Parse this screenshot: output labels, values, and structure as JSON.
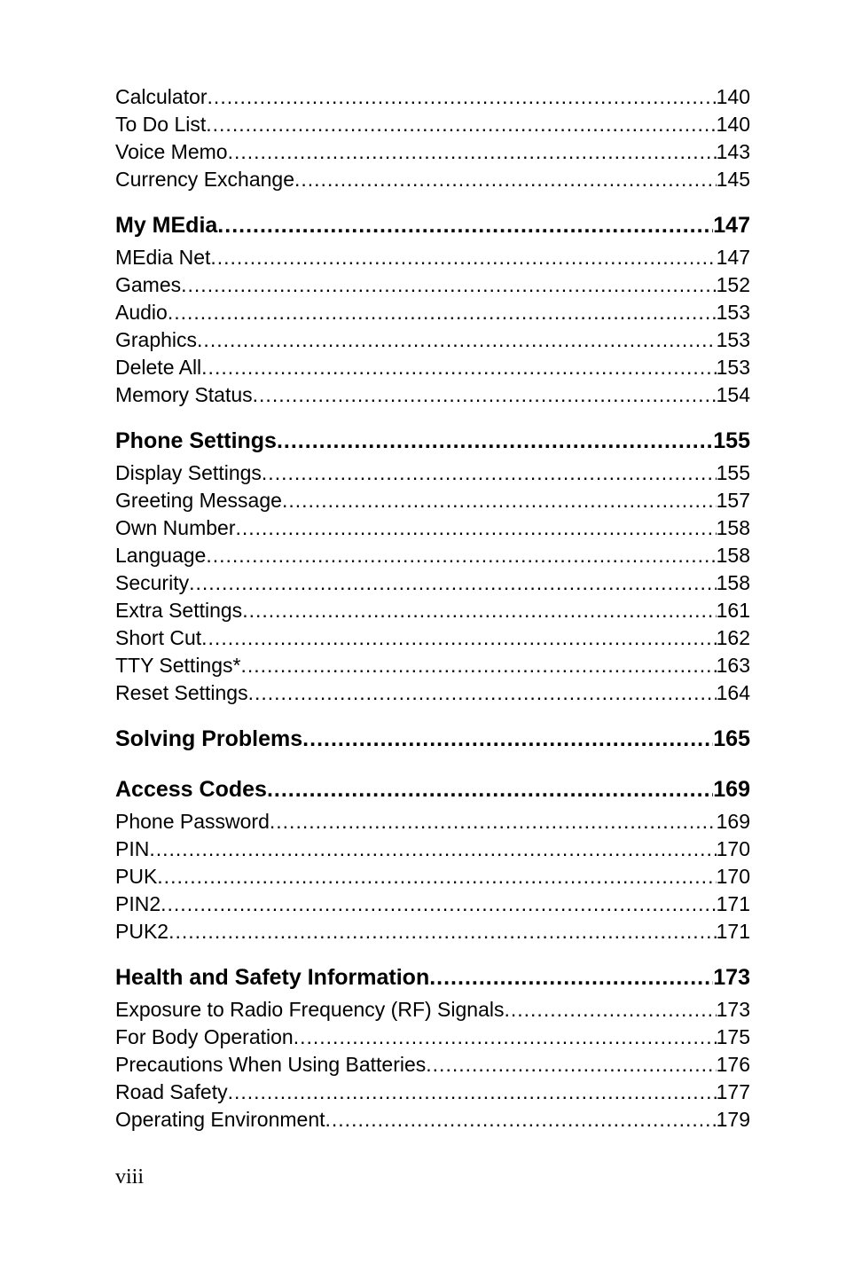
{
  "dot_pattern": "........................................................................................................................................................................................................",
  "footer": "viii",
  "entries": [
    {
      "kind": "item",
      "label": "Calculator",
      "page": "140"
    },
    {
      "kind": "item",
      "label": "To Do List",
      "page": "140"
    },
    {
      "kind": "item",
      "label": "Voice Memo",
      "page": "143"
    },
    {
      "kind": "item",
      "label": "Currency Exchange",
      "page": "145"
    },
    {
      "kind": "gap"
    },
    {
      "kind": "section",
      "label": "My MEdia",
      "page": "147"
    },
    {
      "kind": "item",
      "label": "MEdia Net",
      "page": "147"
    },
    {
      "kind": "item",
      "label": "Games",
      "page": "152"
    },
    {
      "kind": "item",
      "label": "Audio",
      "page": "153"
    },
    {
      "kind": "item",
      "label": "Graphics",
      "page": "153"
    },
    {
      "kind": "item",
      "label": "Delete All",
      "page": "153"
    },
    {
      "kind": "item",
      "label": "Memory Status",
      "page": "154"
    },
    {
      "kind": "gap"
    },
    {
      "kind": "section",
      "label": "Phone Settings",
      "page": "155"
    },
    {
      "kind": "item",
      "label": "Display Settings",
      "page": "155"
    },
    {
      "kind": "item",
      "label": "Greeting Message",
      "page": "157"
    },
    {
      "kind": "item",
      "label": "Own Number",
      "page": "158"
    },
    {
      "kind": "item",
      "label": "Language",
      "page": "158"
    },
    {
      "kind": "item",
      "label": "Security",
      "page": "158"
    },
    {
      "kind": "item",
      "label": "Extra Settings",
      "page": "161"
    },
    {
      "kind": "item",
      "label": "Short Cut",
      "page": "162"
    },
    {
      "kind": "item",
      "label": "TTY Settings*",
      "page": "163"
    },
    {
      "kind": "item",
      "label": "Reset Settings",
      "page": "164"
    },
    {
      "kind": "gap"
    },
    {
      "kind": "section",
      "label": "Solving Problems",
      "page": "165"
    },
    {
      "kind": "gap"
    },
    {
      "kind": "section",
      "label": "Access Codes",
      "page": "169"
    },
    {
      "kind": "item",
      "label": "Phone Password",
      "page": "169"
    },
    {
      "kind": "item",
      "label": "PIN",
      "page": "170"
    },
    {
      "kind": "item",
      "label": "PUK",
      "page": "170"
    },
    {
      "kind": "item",
      "label": "PIN2",
      "page": "171"
    },
    {
      "kind": "item",
      "label": "PUK2",
      "page": "171"
    },
    {
      "kind": "gap"
    },
    {
      "kind": "section",
      "label": "Health and Safety Information",
      "page": "173"
    },
    {
      "kind": "item",
      "label": "Exposure to Radio Frequency (RF) Signals",
      "page": "173"
    },
    {
      "kind": "item",
      "label": "For Body Operation",
      "page": "175"
    },
    {
      "kind": "item",
      "label": "Precautions When Using Batteries",
      "page": "176"
    },
    {
      "kind": "item",
      "label": "Road Safety",
      "page": "177"
    },
    {
      "kind": "item",
      "label": "Operating Environment",
      "page": "179"
    }
  ]
}
